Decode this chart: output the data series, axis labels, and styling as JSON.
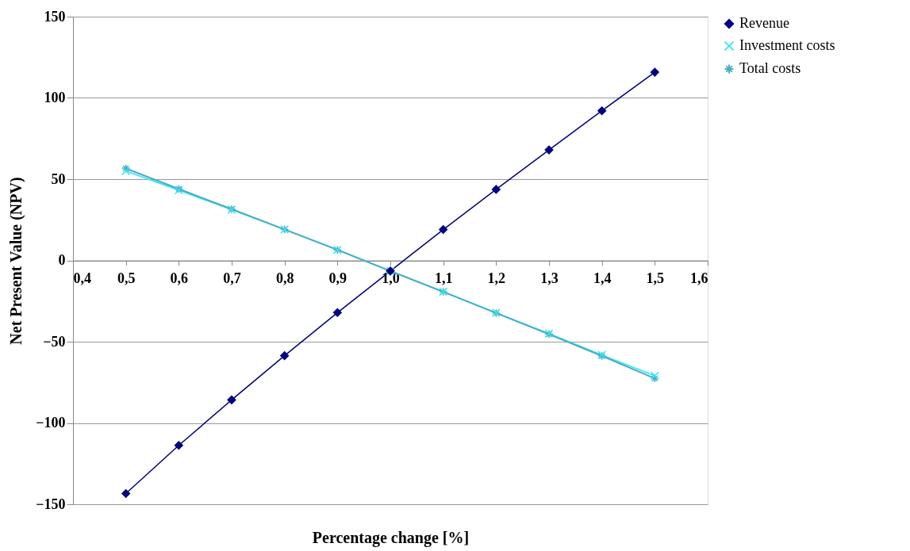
{
  "chart_data": {
    "type": "line",
    "xlabel": "Percentage change [%]",
    "ylabel": "Net Present Value (NPV)",
    "x": [
      0.5,
      0.6,
      0.7,
      0.8,
      0.9,
      1.0,
      1.1,
      1.2,
      1.3,
      1.4,
      1.5
    ],
    "series": [
      {
        "name": "Revenue",
        "color": "#000080",
        "marker": "diamond",
        "values": [
          -143.4,
          -113.8,
          -85.8,
          -58.6,
          -32.1,
          -6.5,
          19.0,
          43.7,
          68.0,
          92.1,
          115.8
        ]
      },
      {
        "name": "Investment costs",
        "color": "#33e6f0",
        "marker": "cross",
        "values": [
          55.0,
          43.2,
          31.2,
          19.0,
          6.5,
          -6.5,
          -19.2,
          -32.2,
          -45.0,
          -58.2,
          -71.0
        ]
      },
      {
        "name": "Total costs",
        "color": "#4bacc6",
        "marker": "cross",
        "values": [
          56.6,
          44.0,
          31.6,
          19.1,
          6.5,
          -6.5,
          -19.3,
          -32.4,
          -45.4,
          -58.8,
          -72.6
        ]
      }
    ],
    "xlim": [
      0.4,
      1.6
    ],
    "xticks": [
      {
        "value": 0.4,
        "label": "0,4"
      },
      {
        "value": 0.5,
        "label": "0,5"
      },
      {
        "value": 0.6,
        "label": "0,6"
      },
      {
        "value": 0.7,
        "label": "0,7"
      },
      {
        "value": 0.8,
        "label": "0,8"
      },
      {
        "value": 0.9,
        "label": "0,9"
      },
      {
        "value": 1.0,
        "label": "1,0"
      },
      {
        "value": 1.1,
        "label": "1,1"
      },
      {
        "value": 1.2,
        "label": "1,2"
      },
      {
        "value": 1.3,
        "label": "1,3"
      },
      {
        "value": 1.4,
        "label": "1,4"
      },
      {
        "value": 1.5,
        "label": "1,5"
      },
      {
        "value": 1.6,
        "label": "1,6"
      }
    ],
    "ylim": [
      -150,
      150
    ],
    "yticks": [
      -150,
      -100,
      -50,
      0,
      50,
      100,
      150
    ],
    "grid": "y",
    "legend": "top right",
    "line_style": "solid"
  }
}
